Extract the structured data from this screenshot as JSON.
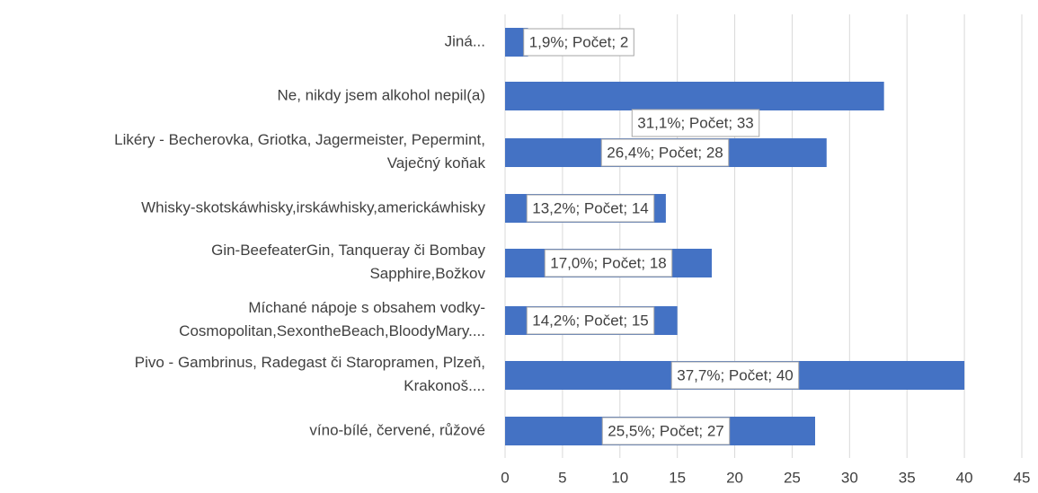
{
  "chart_data": {
    "type": "bar",
    "orientation": "horizontal",
    "categories": [
      "Jiná...",
      "Ne, nikdy jsem alkohol nepil(a)",
      "Likéry - Becherovka, Griotka, Jagermeister, Pepermint,\nVaječný koňak",
      "Whisky-skotskáwhisky,irskáwhisky,americkáwhisky",
      "Gin-BeefeaterGin, Tanqueray či Bombay\nSapphire,Božkov",
      "Míchané nápoje s obsahem vodky-\nCosmopolitan,SexontheBeach,BloodyMary....",
      "Pivo - Gambrinus, Radegast či Staropramen, Plzeň,\nKrakonoš....",
      "víno-bílé, červené, růžové"
    ],
    "values": [
      2,
      33,
      28,
      14,
      18,
      15,
      40,
      27
    ],
    "value_labels": [
      "1,9%; Počet; 2",
      "31,1%; Počet; 33",
      "26,4%; Počet; 28",
      "13,2%; Počet; 14",
      "17,0%; Počet; 18",
      "14,2%; Počet; 15",
      "37,7%; Počet; 40",
      "25,5%; Počet; 27"
    ],
    "color": "#4472c4",
    "xlim": [
      0,
      45
    ],
    "xticks": [
      0,
      5,
      10,
      15,
      20,
      25,
      30,
      35,
      40,
      45
    ],
    "grid": true
  }
}
